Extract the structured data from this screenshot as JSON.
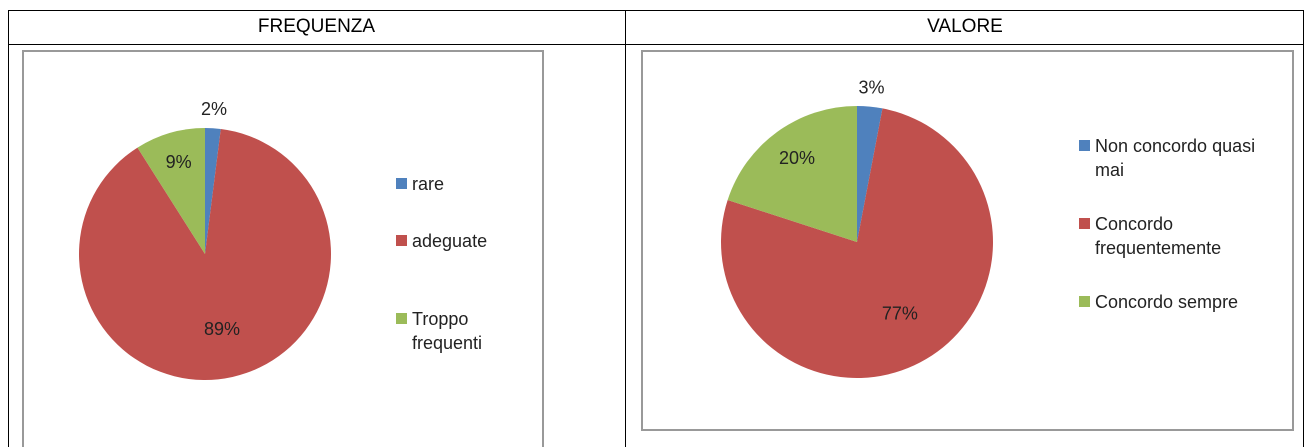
{
  "chart_data": [
    {
      "type": "pie",
      "title": "FREQUENZA",
      "categories": [
        "rare",
        "adeguate",
        "Troppo frequenti"
      ],
      "values": [
        2,
        89,
        9
      ],
      "value_labels": [
        "2%",
        "89%",
        "9%"
      ],
      "colors": [
        "#4f81bd",
        "#c0504d",
        "#9bbb59"
      ],
      "legend": "right"
    },
    {
      "type": "pie",
      "title": "VALORE",
      "categories": [
        "Non concordo quasi mai",
        "Concordo frequentemente",
        "Concordo sempre"
      ],
      "values": [
        3,
        77,
        20
      ],
      "value_labels": [
        "3%",
        "77%",
        "20%"
      ],
      "colors": [
        "#4f81bd",
        "#c0504d",
        "#9bbb59"
      ],
      "legend": "right"
    }
  ]
}
